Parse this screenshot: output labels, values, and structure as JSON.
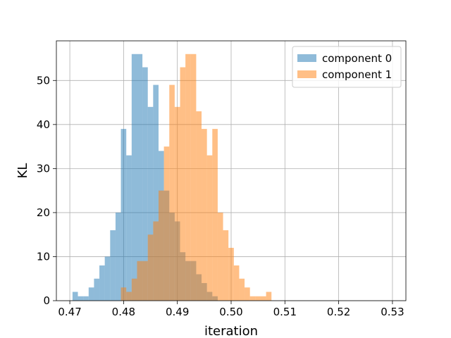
{
  "chart_data": {
    "type": "bar",
    "xlabel": "iteration",
    "ylabel": "KL",
    "xlim": [
      0.4675,
      0.5325
    ],
    "ylim": [
      0,
      59
    ],
    "grid": true,
    "legend_position": "top-right",
    "x_ticks": [
      0.47,
      0.48,
      0.49,
      0.5,
      0.51,
      0.52,
      0.53
    ],
    "x_tick_labels": [
      "0.47",
      "0.48",
      "0.49",
      "0.50",
      "0.51",
      "0.52",
      "0.53"
    ],
    "y_ticks": [
      0,
      10,
      20,
      30,
      40,
      50
    ],
    "y_tick_labels": [
      "0",
      "10",
      "20",
      "30",
      "40",
      "50"
    ],
    "series": [
      {
        "name": "component 0",
        "color": "#1f77b4",
        "opacity": 0.5,
        "bin_start": 0.4705,
        "bin_width": 0.001,
        "values": [
          2,
          1,
          1,
          3,
          5,
          8,
          10,
          16,
          20,
          39,
          33,
          56,
          56,
          53,
          44,
          49,
          34,
          25,
          20,
          18,
          11,
          9,
          9,
          6,
          4,
          2,
          1
        ]
      },
      {
        "name": "component 1",
        "color": "#ff7f0e",
        "opacity": 0.5,
        "bin_start": 0.4795,
        "bin_width": 0.001,
        "values": [
          3,
          2,
          5,
          9,
          9,
          15,
          18,
          25,
          35,
          49,
          44,
          53,
          56,
          56,
          43,
          39,
          33,
          39,
          20,
          16,
          12,
          8,
          5,
          3,
          1,
          1,
          1,
          2
        ]
      }
    ]
  }
}
